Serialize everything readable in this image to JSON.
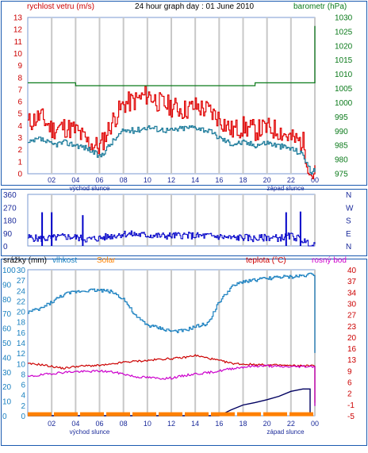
{
  "chart_data": [
    {
      "type": "line",
      "title": "24 hour graph day : 01 June 2010",
      "ylabel_left": "rychlost vetru (m/s)",
      "ylabel_right": "barometr (hPa)",
      "ylim_left": [
        0,
        13
      ],
      "ylim_right": [
        975,
        1030
      ],
      "yticks_left": [
        "0",
        "1",
        "2",
        "3",
        "4",
        "5",
        "6",
        "7",
        "8",
        "9",
        "10",
        "11",
        "12",
        "13"
      ],
      "yticks_right": [
        "975",
        "980",
        "985",
        "990",
        "995",
        "1000",
        "1005",
        "1010",
        "1015",
        "1020",
        "1025",
        "1030"
      ],
      "x_hours": [
        0,
        1,
        2,
        3,
        4,
        5,
        6,
        7,
        8,
        9,
        10,
        11,
        12,
        13,
        14,
        15,
        16,
        17,
        18,
        19,
        20,
        21,
        22,
        23,
        23.6,
        24
      ],
      "series": [
        {
          "role": "gust",
          "values": [
            4.2,
            4.8,
            3.7,
            3.9,
            3.6,
            2.6,
            2.2,
            4.3,
            5.8,
            6.1,
            6.6,
            5.9,
            5.6,
            5.3,
            5.6,
            5.3,
            4.6,
            3.6,
            3.9,
            3.6,
            3.8,
            3.6,
            2.9,
            2.6,
            0,
            0
          ]
        },
        {
          "role": "average",
          "values": [
            2.5,
            2.9,
            2.4,
            2.6,
            2.4,
            2.1,
            1.4,
            2.6,
            3.6,
            3.6,
            3.9,
            3.7,
            3.6,
            3.8,
            3.9,
            3.6,
            3.0,
            2.5,
            2.6,
            2.4,
            2.6,
            2.3,
            2.1,
            1.6,
            0.2,
            0.2
          ]
        },
        {
          "role": "pressure",
          "values": [
            1007,
            1007,
            1007,
            1007,
            1006,
            1006,
            1006,
            1006,
            1006,
            1006,
            1006,
            1006,
            1006,
            1006,
            1006,
            1006,
            1006,
            1006,
            1006,
            1007,
            1007,
            1007,
            1007,
            1007,
            1007,
            1027
          ]
        }
      ]
    },
    {
      "type": "bar",
      "y_tick_labels": [
        "360",
        "270",
        "180",
        "90",
        "0"
      ],
      "compass_labels": [
        "N",
        "W",
        "S",
        "E",
        "N"
      ],
      "ylim": [
        0,
        360
      ],
      "x_hours": [
        0,
        1,
        2,
        3,
        4,
        5,
        6,
        7,
        8,
        9,
        10,
        11,
        12,
        13,
        14,
        15,
        16,
        17,
        18,
        19,
        20,
        21,
        22,
        23,
        23.6,
        24
      ],
      "direction_deg": [
        60,
        50,
        55,
        65,
        60,
        45,
        55,
        70,
        85,
        80,
        75,
        70,
        70,
        75,
        70,
        70,
        65,
        55,
        60,
        50,
        60,
        55,
        70,
        40,
        0,
        0
      ],
      "spikes": [
        {
          "hour": 1.2,
          "deg": 235
        },
        {
          "hour": 2.0,
          "deg": 235
        },
        {
          "hour": 4.6,
          "deg": 215
        },
        {
          "hour": 21.6,
          "deg": 235
        },
        {
          "hour": 22.8,
          "deg": 240
        }
      ]
    },
    {
      "type": "line",
      "labels": {
        "rain": "srážky (mm)",
        "humidity": "vlhkost",
        "solar": "Solar",
        "temperature": "teplota (°C)",
        "dewpoint": "rosný bod"
      },
      "yticks_rain": [
        "0",
        "2",
        "4",
        "6",
        "8",
        "10",
        "12",
        "14",
        "16",
        "18",
        "20",
        "22",
        "24",
        "27",
        "30"
      ],
      "yticks_humidity": [
        "0",
        "10",
        "20",
        "30",
        "40",
        "50",
        "60",
        "70",
        "80",
        "90",
        "100"
      ],
      "yticks_temp": [
        "-5",
        "-1",
        "2",
        "6",
        "9",
        "13",
        "16",
        "20",
        "23",
        "27",
        "30",
        "34",
        "37",
        "40"
      ],
      "ylim_temp": [
        -5,
        40
      ],
      "ylim_humidity": [
        0,
        100
      ],
      "ylim_rain": [
        0,
        30
      ],
      "x_hours": [
        0,
        1,
        2,
        3,
        4,
        5,
        6,
        7,
        8,
        9,
        10,
        11,
        12,
        13,
        14,
        15,
        16,
        17,
        18,
        19,
        20,
        21,
        22,
        23,
        23.6,
        24
      ],
      "series": [
        {
          "role": "humidity",
          "values": [
            71,
            73,
            78,
            83,
            85,
            86,
            86,
            85,
            80,
            68,
            62,
            60,
            58,
            58,
            61,
            63,
            78,
            88,
            92,
            93,
            94,
            95,
            95,
            96,
            97,
            43
          ]
        },
        {
          "role": "temperature",
          "values": [
            11,
            10.8,
            10.2,
            9.6,
            10.2,
            10.4,
            10.5,
            10.8,
            11.5,
            11.8,
            12.0,
            12.4,
            12.6,
            12.9,
            13.6,
            12.8,
            12.0,
            11.2,
            10.9,
            10.8,
            10.6,
            10.6,
            10.4,
            10.4,
            10.4,
            -1
          ]
        },
        {
          "role": "dewpoint",
          "values": [
            7,
            7.5,
            8,
            8.4,
            8.6,
            8.6,
            8.8,
            8.5,
            7.9,
            7,
            6.8,
            6.5,
            6.6,
            7.3,
            7.9,
            8.2,
            8.8,
            9.5,
            10,
            10.3,
            10.4,
            10.1,
            10.1,
            10.2,
            10.2,
            -2
          ]
        },
        {
          "role": "rain",
          "values": [
            0,
            0,
            0,
            0,
            0,
            0,
            0,
            0,
            0,
            0,
            0,
            0,
            0,
            0,
            0,
            0,
            0,
            1.2,
            2.2,
            2.7,
            3.3,
            4.0,
            5.0,
            5.5,
            5.5,
            0
          ]
        },
        {
          "role": "solar",
          "values": [
            0.3,
            0.3,
            0.3,
            0.3,
            0.3,
            0.3,
            0.3,
            0.3,
            0.3,
            0.3,
            0.3,
            0.3,
            0.3,
            0.3,
            0.3,
            0.3,
            0.3,
            0.3,
            0.3,
            0.3,
            0.3,
            0.3,
            0.3,
            0.3,
            0.3,
            0.3
          ]
        }
      ]
    }
  ],
  "x_axis": {
    "ticks": [
      "02",
      "04",
      "06",
      "08",
      "10",
      "12",
      "14",
      "16",
      "18",
      "20",
      "22",
      "00"
    ],
    "sunrise_label": "východ slunce",
    "sunset_label": "západ slunce"
  },
  "colors": {
    "gust": "#e00000",
    "average": "#1a7a9a",
    "pressure": "#0a7a1a",
    "direction": "#0000c8",
    "humidity": "#1a80c0",
    "temperature": "#cc0000",
    "dewpoint": "#cc00cc",
    "rain": "#000060",
    "solar": "#ff8000",
    "frame": "#1a5ab0",
    "left_axis_red": "#cc0000",
    "right_axis_green": "#0a7a1a",
    "compass": "#1a2a9a"
  }
}
